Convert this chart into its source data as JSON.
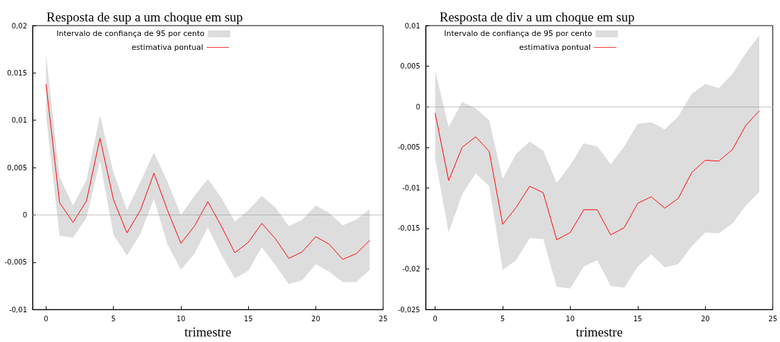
{
  "chart_data": [
    {
      "type": "line",
      "title": "Resposta de sup a um choque em sup",
      "xlabel": "trimestre",
      "annotations": [
        "Intervalo de confiança de 95 por cento"
      ],
      "x": [
        0,
        1,
        2,
        3,
        4,
        5,
        6,
        7,
        8,
        9,
        10,
        11,
        12,
        13,
        14,
        15,
        16,
        17,
        18,
        19,
        20,
        21,
        22,
        23,
        24
      ],
      "series": [
        {
          "name": "estimativa pontual",
          "color": "#ff0000",
          "values": [
            0.0138,
            0.0013,
            -0.0008,
            0.0015,
            0.0081,
            0.0016,
            -0.0019,
            0.0005,
            0.0044,
            0.0005,
            -0.003,
            -0.0012,
            0.0014,
            -0.0012,
            -0.004,
            -0.0029,
            -0.0009,
            -0.0025,
            -0.0046,
            -0.0039,
            -0.0023,
            -0.0031,
            -0.0047,
            -0.0041,
            -0.0027
          ],
          "lower": [
            0.0105,
            -0.0022,
            -0.0024,
            -0.0003,
            0.0057,
            -0.0021,
            -0.0043,
            -0.002,
            0.0017,
            -0.0031,
            -0.0058,
            -0.0041,
            -0.0013,
            -0.0042,
            -0.0067,
            -0.0059,
            -0.0034,
            -0.0053,
            -0.0073,
            -0.0069,
            -0.0052,
            -0.006,
            -0.0071,
            -0.0071,
            -0.0058
          ],
          "upper": [
            0.017,
            0.004,
            0.001,
            0.0037,
            0.0105,
            0.0045,
            0.0005,
            0.0035,
            0.0066,
            0.0035,
            0,
            0.002,
            0.0038,
            0.0018,
            -0.0007,
            0.0005,
            0.002,
            0.0008,
            -0.0012,
            -0.0005,
            0.001,
            0.0002,
            -0.0011,
            -0.0005,
            0.0006
          ]
        }
      ],
      "xlim": [
        -1,
        25
      ],
      "xticks": [
        0,
        5,
        10,
        15,
        20,
        25
      ],
      "ylim": [
        -0.01,
        0.02
      ],
      "yticks": [
        {
          "value": -0.01,
          "label": "-0,01"
        },
        {
          "value": -0.005,
          "label": "-0,005"
        },
        0,
        {
          "value": 0.005,
          "label": "0,005"
        },
        {
          "value": 0.01,
          "label": "0,01"
        },
        {
          "value": 0.015,
          "label": "0,015"
        },
        {
          "value": 0.02,
          "label": "0,02"
        }
      ],
      "ref_lines": [
        {
          "axis": "y",
          "value": 0,
          "color": "#888888",
          "line_style": "dotted"
        }
      ],
      "legend": "top left",
      "grid": false,
      "marker": "none",
      "line_style": "solid"
    },
    {
      "type": "line",
      "title": "Resposta de div a um choque em sup",
      "xlabel": "trimestre",
      "annotations": [
        "Intervalo de confiança de 95 por cento"
      ],
      "x": [
        0,
        1,
        2,
        3,
        4,
        5,
        6,
        7,
        8,
        9,
        10,
        11,
        12,
        13,
        14,
        15,
        16,
        17,
        18,
        19,
        20,
        21,
        22,
        23,
        24
      ],
      "series": [
        {
          "name": "estimativa pontual",
          "color": "#ff0000",
          "values": [
            -0.0008,
            -0.0091,
            -0.005,
            -0.0037,
            -0.0055,
            -0.0145,
            -0.0124,
            -0.0098,
            -0.0106,
            -0.0164,
            -0.0155,
            -0.0127,
            -0.0127,
            -0.0158,
            -0.0149,
            -0.0119,
            -0.0111,
            -0.0125,
            -0.0113,
            -0.0081,
            -0.0066,
            -0.0067,
            -0.0053,
            -0.0023,
            -0.0005
          ],
          "lower": [
            -0.0064,
            -0.0155,
            -0.0108,
            -0.0082,
            -0.0098,
            -0.0201,
            -0.0189,
            -0.0162,
            -0.0163,
            -0.0222,
            -0.0224,
            -0.0197,
            -0.0189,
            -0.0221,
            -0.0223,
            -0.0197,
            -0.0182,
            -0.0198,
            -0.0194,
            -0.0172,
            -0.0155,
            -0.0156,
            -0.0144,
            -0.0122,
            -0.0105
          ],
          "upper": [
            0.0045,
            -0.0025,
            0.0006,
            -0.0002,
            -0.0017,
            -0.0089,
            -0.0058,
            -0.0043,
            -0.0054,
            -0.0094,
            -0.0072,
            -0.0045,
            -0.0049,
            -0.0071,
            -0.0049,
            -0.0021,
            -0.0019,
            -0.0028,
            -0.0012,
            0.0016,
            0.0028,
            0.0023,
            0.004,
            0.0066,
            0.0088
          ]
        }
      ],
      "xlim": [
        -0.7,
        25
      ],
      "xticks": [
        0,
        5,
        10,
        15,
        20,
        25
      ],
      "ylim": [
        -0.025,
        0.01
      ],
      "yticks": [
        {
          "value": -0.025,
          "label": "-0,025"
        },
        {
          "value": -0.02,
          "label": "-0,02"
        },
        {
          "value": -0.015,
          "label": "-0,015"
        },
        {
          "value": -0.01,
          "label": "-0,01"
        },
        {
          "value": -0.005,
          "label": "-0,005"
        },
        0,
        {
          "value": 0.005,
          "label": "0,005"
        },
        {
          "value": 0.01,
          "label": "0,01"
        }
      ],
      "ref_lines": [
        {
          "axis": "y",
          "value": 0,
          "color": "#888888",
          "line_style": "dotted"
        }
      ],
      "legend": "top left",
      "grid": false,
      "marker": "none",
      "line_style": "solid"
    }
  ]
}
